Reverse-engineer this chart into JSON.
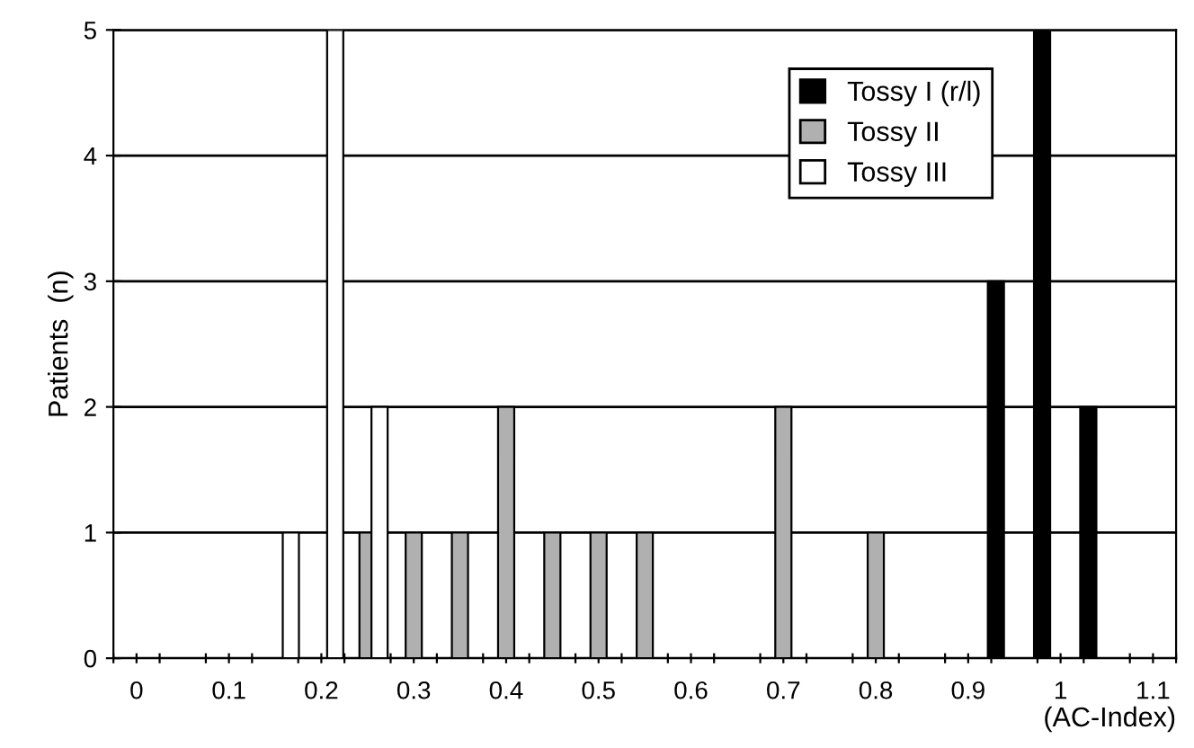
{
  "chart_data": {
    "type": "bar",
    "ylabel": "Patients  (n)",
    "xlabel": "(AC-Index)",
    "xlim": [
      -0.025,
      1.125
    ],
    "ylim": [
      0,
      5
    ],
    "yticks": [
      0,
      1,
      2,
      3,
      4,
      5
    ],
    "xticks": [
      {
        "value": 0,
        "label": "0"
      },
      {
        "value": 0.1,
        "label": "0.1"
      },
      {
        "value": 0.2,
        "label": "0.2"
      },
      {
        "value": 0.3,
        "label": "0.3"
      },
      {
        "value": 0.4,
        "label": "0.4"
      },
      {
        "value": 0.5,
        "label": "0.5"
      },
      {
        "value": 0.6,
        "label": "0.6"
      },
      {
        "value": 0.7,
        "label": "0.7"
      },
      {
        "value": 0.8,
        "label": "0.8"
      },
      {
        "value": 0.9,
        "label": "0.9"
      },
      {
        "value": 1,
        "label": "1"
      },
      {
        "value": 1.1,
        "label": "1.1"
      },
      {
        "value": -0.025,
        "label": null
      },
      {
        "value": 0.025,
        "label": null
      },
      {
        "value": 0.075,
        "label": null
      },
      {
        "value": 0.125,
        "label": null
      },
      {
        "value": 0.175,
        "label": null
      },
      {
        "value": 0.225,
        "label": null
      },
      {
        "value": 0.275,
        "label": null
      },
      {
        "value": 0.325,
        "label": null
      },
      {
        "value": 0.375,
        "label": null
      },
      {
        "value": 0.425,
        "label": null
      },
      {
        "value": 0.475,
        "label": null
      },
      {
        "value": 0.525,
        "label": null
      },
      {
        "value": 0.575,
        "label": null
      },
      {
        "value": 0.625,
        "label": null
      },
      {
        "value": 0.675,
        "label": null
      },
      {
        "value": 0.725,
        "label": null
      },
      {
        "value": 0.775,
        "label": null
      },
      {
        "value": 0.825,
        "label": null
      },
      {
        "value": 0.875,
        "label": null
      },
      {
        "value": 0.925,
        "label": null
      },
      {
        "value": 0.975,
        "label": null
      },
      {
        "value": 1.025,
        "label": null
      },
      {
        "value": 1.075,
        "label": null
      },
      {
        "value": 1.125,
        "label": null
      }
    ],
    "grid": "y",
    "legend": "top right",
    "series": [
      {
        "name": "Tossy I (r/l)",
        "color": "#000000",
        "x": [
          0.93,
          0.98,
          1.03
        ],
        "values": [
          3,
          5,
          2
        ]
      },
      {
        "name": "Tossy II",
        "color": "#b0b0b0",
        "x": [
          0.25,
          0.3,
          0.35,
          0.4,
          0.45,
          0.5,
          0.55,
          0.7,
          0.8
        ],
        "values": [
          1,
          1,
          1,
          2,
          1,
          1,
          1,
          2,
          1
        ]
      },
      {
        "name": "Tossy III",
        "color": "#ffffff",
        "x": [
          0.167,
          0.215,
          0.263
        ],
        "values": [
          1,
          5,
          2
        ]
      }
    ]
  }
}
